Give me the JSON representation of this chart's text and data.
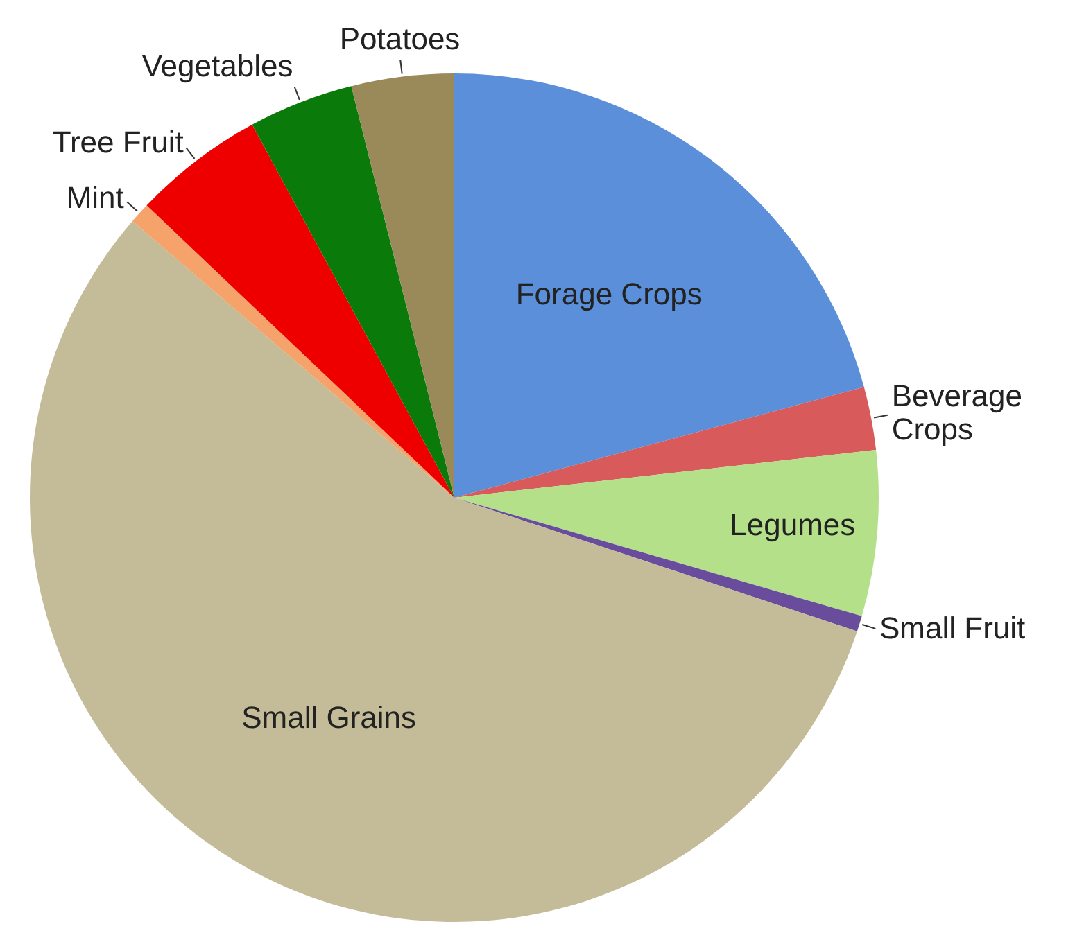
{
  "chart_data": {
    "type": "pie",
    "categories": [
      "Forage Crops",
      "Beverage Crops",
      "Legumes",
      "Small Fruit",
      "Small Grains",
      "Mint",
      "Tree Fruit",
      "Vegetables",
      "Potatoes"
    ],
    "values": [
      20.8,
      2.4,
      6.3,
      0.6,
      56.2,
      0.8,
      5.0,
      4.0,
      3.9
    ],
    "colors": [
      "#5b8fd9",
      "#d85a5a",
      "#b5e08a",
      "#6a4c9c",
      "#c4bc98",
      "#f5a36a",
      "#ee0000",
      "#0a7a0a",
      "#9a8a5a"
    ],
    "legend": false
  }
}
